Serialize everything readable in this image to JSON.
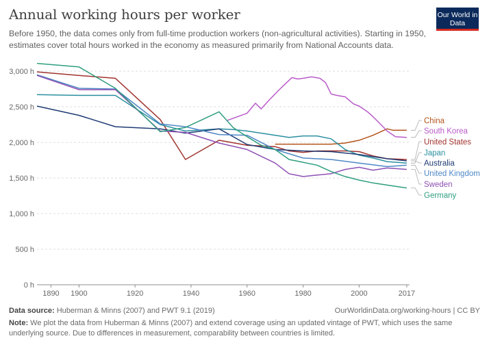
{
  "header": {
    "title": "Annual working hours per worker",
    "subtitle": "Before 1950, the data comes only from full-time production workers (non-agricultural activities). Starting in 1950, estimates cover total hours worked in the economy as measured primarily from National Accounts data.",
    "logo": "Our World in Data"
  },
  "footer": {
    "source_label": "Data source:",
    "source_text": "Huberman & Minns (2007) and PWT 9.1 (2019)",
    "url": "OurWorldinData.org/working-hours | CC BY",
    "note_label": "Note:",
    "note_text": "We plot the data from Huberman & Minns (2007) and extend coverage using an updated vintage of PWT, which uses the same underlying source. Due to differences in measurement, comparability between countries is limited."
  },
  "chart_data": {
    "type": "line",
    "xlim": [
      1885,
      2018
    ],
    "ylim": [
      0,
      3000
    ],
    "x_ticks": [
      1890,
      1900,
      1920,
      1940,
      1960,
      1980,
      2000,
      2017
    ],
    "y_ticks": [
      0,
      500,
      1000,
      1500,
      2000,
      2500,
      3000
    ],
    "y_tick_labels": [
      "0 h",
      "500 h",
      "1,000 h",
      "1,500 h",
      "2,000 h",
      "2,500 h",
      "3,000 h"
    ],
    "grid": true,
    "legend": "right",
    "series": [
      {
        "name": "China",
        "color": "#b4541a",
        "points": [
          [
            1970,
            1975
          ],
          [
            1980,
            1975
          ],
          [
            1990,
            1975
          ],
          [
            1995,
            1990
          ],
          [
            2000,
            2030
          ],
          [
            2005,
            2100
          ],
          [
            2010,
            2190
          ],
          [
            2012,
            2170
          ],
          [
            2017,
            2170
          ]
        ]
      },
      {
        "name": "South Korea",
        "color": "#b85ac8",
        "points": [
          [
            1953,
            2310
          ],
          [
            1960,
            2410
          ],
          [
            1963,
            2550
          ],
          [
            1965,
            2470
          ],
          [
            1968,
            2600
          ],
          [
            1972,
            2760
          ],
          [
            1976,
            2910
          ],
          [
            1978,
            2890
          ],
          [
            1980,
            2900
          ],
          [
            1983,
            2920
          ],
          [
            1986,
            2900
          ],
          [
            1988,
            2840
          ],
          [
            1990,
            2680
          ],
          [
            1992,
            2660
          ],
          [
            1995,
            2640
          ],
          [
            1998,
            2540
          ],
          [
            2000,
            2510
          ],
          [
            2003,
            2430
          ],
          [
            2005,
            2360
          ],
          [
            2008,
            2240
          ],
          [
            2010,
            2160
          ],
          [
            2013,
            2080
          ],
          [
            2017,
            2070
          ]
        ]
      },
      {
        "name": "United States",
        "color": "#a0322e",
        "points": [
          [
            1885,
            2990
          ],
          [
            1900,
            2940
          ],
          [
            1913,
            2900
          ],
          [
            1929,
            2320
          ],
          [
            1938,
            1760
          ],
          [
            1950,
            2030
          ],
          [
            1960,
            1960
          ],
          [
            1970,
            1940
          ],
          [
            1975,
            1880
          ],
          [
            1980,
            1860
          ],
          [
            1985,
            1880
          ],
          [
            1990,
            1880
          ],
          [
            1995,
            1880
          ],
          [
            2000,
            1870
          ],
          [
            2005,
            1810
          ],
          [
            2010,
            1770
          ],
          [
            2017,
            1760
          ]
        ]
      },
      {
        "name": "Japan",
        "color": "#2a8f9f",
        "points": [
          [
            1885,
            2670
          ],
          [
            1900,
            2660
          ],
          [
            1913,
            2660
          ],
          [
            1929,
            2250
          ],
          [
            1938,
            2160
          ],
          [
            1950,
            2190
          ],
          [
            1955,
            2180
          ],
          [
            1960,
            2160
          ],
          [
            1965,
            2130
          ],
          [
            1970,
            2100
          ],
          [
            1975,
            2070
          ],
          [
            1980,
            2090
          ],
          [
            1985,
            2090
          ],
          [
            1990,
            2050
          ],
          [
            1995,
            1900
          ],
          [
            2000,
            1820
          ],
          [
            2005,
            1780
          ],
          [
            2010,
            1730
          ],
          [
            2017,
            1710
          ]
        ]
      },
      {
        "name": "Australia",
        "color": "#1f3a73",
        "points": [
          [
            1885,
            2510
          ],
          [
            1900,
            2380
          ],
          [
            1913,
            2220
          ],
          [
            1929,
            2190
          ],
          [
            1938,
            2130
          ],
          [
            1950,
            2190
          ],
          [
            1960,
            1970
          ],
          [
            1970,
            1900
          ],
          [
            1980,
            1880
          ],
          [
            1990,
            1870
          ],
          [
            2000,
            1830
          ],
          [
            2010,
            1770
          ],
          [
            2017,
            1740
          ]
        ]
      },
      {
        "name": "United Kingdom",
        "color": "#4e87c6",
        "points": [
          [
            1885,
            2950
          ],
          [
            1900,
            2760
          ],
          [
            1913,
            2750
          ],
          [
            1929,
            2260
          ],
          [
            1938,
            2220
          ],
          [
            1950,
            2110
          ],
          [
            1960,
            2100
          ],
          [
            1970,
            1900
          ],
          [
            1980,
            1780
          ],
          [
            1990,
            1760
          ],
          [
            2000,
            1710
          ],
          [
            2010,
            1660
          ],
          [
            2017,
            1680
          ]
        ]
      },
      {
        "name": "Sweden",
        "color": "#8d4fb4",
        "points": [
          [
            1885,
            2940
          ],
          [
            1900,
            2740
          ],
          [
            1913,
            2740
          ],
          [
            1929,
            2160
          ],
          [
            1938,
            2140
          ],
          [
            1950,
            1990
          ],
          [
            1960,
            1900
          ],
          [
            1970,
            1710
          ],
          [
            1975,
            1560
          ],
          [
            1980,
            1520
          ],
          [
            1985,
            1540
          ],
          [
            1990,
            1560
          ],
          [
            1995,
            1620
          ],
          [
            2000,
            1650
          ],
          [
            2005,
            1610
          ],
          [
            2010,
            1640
          ],
          [
            2017,
            1620
          ]
        ]
      },
      {
        "name": "Germany",
        "color": "#2e9e7e",
        "points": [
          [
            1885,
            3110
          ],
          [
            1900,
            3060
          ],
          [
            1913,
            2760
          ],
          [
            1929,
            2150
          ],
          [
            1938,
            2210
          ],
          [
            1950,
            2430
          ],
          [
            1955,
            2210
          ],
          [
            1960,
            2080
          ],
          [
            1965,
            1960
          ],
          [
            1970,
            1900
          ],
          [
            1975,
            1760
          ],
          [
            1980,
            1720
          ],
          [
            1985,
            1680
          ],
          [
            1990,
            1590
          ],
          [
            1995,
            1520
          ],
          [
            2000,
            1470
          ],
          [
            2005,
            1430
          ],
          [
            2010,
            1400
          ],
          [
            2017,
            1360
          ]
        ]
      }
    ]
  }
}
